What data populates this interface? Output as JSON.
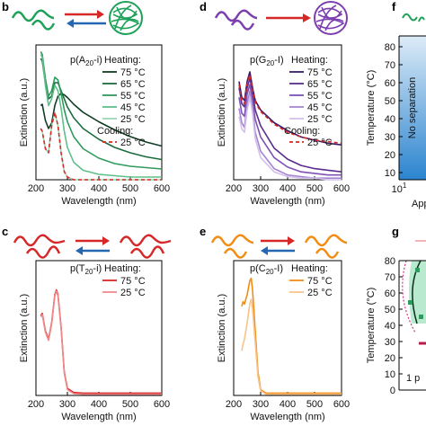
{
  "chart_data": [
    {
      "panel": "b",
      "type": "line",
      "title": "p(A20-i)",
      "title_main": "p(A",
      "title_sub": "20",
      "title_end": "-i)",
      "xlabel": "Wavelength (nm)",
      "ylabel": "Extinction (a.u.)",
      "xlim": [
        200,
        600
      ],
      "xticks": [
        "200",
        "300",
        "400",
        "500",
        "600"
      ],
      "legend_heating": "Heating:",
      "legend_cooling": "Cooling:",
      "series": [
        {
          "name": "75 °C",
          "group": "heating",
          "color": "#0f3d23",
          "dash": false,
          "x": [
            215,
            220,
            230,
            240,
            250,
            260,
            270,
            280,
            290,
            300,
            320,
            350,
            400,
            450,
            500,
            550,
            600
          ],
          "y": [
            0.55,
            0.56,
            0.44,
            0.38,
            0.42,
            0.55,
            0.62,
            0.64,
            0.63,
            0.61,
            0.56,
            0.5,
            0.43,
            0.37,
            0.32,
            0.28,
            0.25
          ]
        },
        {
          "name": "65 °C",
          "group": "heating",
          "color": "#1b6b3e",
          "dash": false,
          "x": [
            215,
            220,
            230,
            240,
            250,
            260,
            270,
            280,
            290,
            300,
            320,
            350,
            400,
            450,
            500,
            550,
            600
          ],
          "y": [
            0.9,
            0.88,
            0.72,
            0.6,
            0.62,
            0.72,
            0.72,
            0.66,
            0.6,
            0.54,
            0.46,
            0.38,
            0.3,
            0.24,
            0.2,
            0.17,
            0.15
          ]
        },
        {
          "name": "55 °C",
          "group": "heating",
          "color": "#2f9a5c",
          "dash": false,
          "x": [
            215,
            220,
            230,
            240,
            250,
            260,
            270,
            280,
            290,
            300,
            320,
            350,
            400,
            450,
            500,
            550,
            600
          ],
          "y": [
            0.95,
            0.93,
            0.75,
            0.62,
            0.66,
            0.76,
            0.74,
            0.64,
            0.52,
            0.43,
            0.32,
            0.23,
            0.16,
            0.12,
            0.1,
            0.09,
            0.08
          ]
        },
        {
          "name": "45 °C",
          "group": "heating",
          "color": "#5fbf8a",
          "dash": false,
          "x": [
            215,
            220,
            230,
            240,
            250,
            260,
            270,
            280,
            290,
            300,
            320,
            350,
            400,
            450,
            500,
            550,
            600
          ],
          "y": [
            0.93,
            0.91,
            0.7,
            0.55,
            0.6,
            0.7,
            0.66,
            0.53,
            0.36,
            0.24,
            0.13,
            0.07,
            0.04,
            0.03,
            0.02,
            0.02,
            0.02
          ]
        },
        {
          "name": "25 °C",
          "group": "heating",
          "color": "#9ed9b6",
          "dash": false,
          "x": [
            215,
            220,
            230,
            240,
            250,
            260,
            270,
            280,
            290,
            300,
            320,
            350,
            400,
            450,
            500,
            550,
            600
          ],
          "y": [
            0.38,
            0.36,
            0.23,
            0.2,
            0.4,
            0.5,
            0.4,
            0.2,
            0.06,
            0.02,
            0.0,
            0.0,
            0.0,
            0.0,
            0.0,
            0.0,
            0.0
          ]
        },
        {
          "name": "25 °C",
          "group": "cooling",
          "color": "#d62828",
          "dash": true,
          "x": [
            215,
            220,
            230,
            240,
            250,
            260,
            270,
            280,
            290,
            300,
            320,
            350,
            400,
            450,
            500,
            550,
            600
          ],
          "y": [
            0.38,
            0.36,
            0.23,
            0.2,
            0.4,
            0.5,
            0.4,
            0.2,
            0.06,
            0.02,
            0.0,
            0.0,
            0.0,
            0.0,
            0.0,
            0.0,
            0.0
          ]
        }
      ]
    },
    {
      "panel": "d",
      "type": "line",
      "title": "p(G20-I)",
      "title_main": "p(G",
      "title_sub": "20",
      "title_end": "-I)",
      "xlabel": "Wavelength (nm)",
      "ylabel": "Extinction (a.u.)",
      "xlim": [
        200,
        600
      ],
      "xticks": [
        "200",
        "300",
        "400",
        "500",
        "600"
      ],
      "legend_heating": "Heating:",
      "legend_cooling": "Cooling:",
      "series": [
        {
          "name": "75 °C",
          "group": "heating",
          "color": "#3a1b63",
          "dash": false,
          "x": [
            220,
            230,
            240,
            250,
            260,
            270,
            280,
            300,
            350,
            400,
            450,
            500,
            550,
            600
          ],
          "y": [
            0.62,
            0.52,
            0.5,
            0.62,
            0.68,
            0.58,
            0.5,
            0.44,
            0.36,
            0.31,
            0.27,
            0.25,
            0.23,
            0.22
          ]
        },
        {
          "name": "65 °C",
          "group": "heating",
          "color": "#5b2d8e",
          "dash": false,
          "x": [
            220,
            230,
            240,
            250,
            260,
            270,
            280,
            300,
            350,
            400,
            450,
            500,
            550,
            600
          ],
          "y": [
            0.58,
            0.48,
            0.46,
            0.58,
            0.64,
            0.55,
            0.44,
            0.34,
            0.2,
            0.13,
            0.09,
            0.07,
            0.06,
            0.05
          ]
        },
        {
          "name": "55 °C",
          "group": "heating",
          "color": "#7e52b5",
          "dash": false,
          "x": [
            220,
            230,
            240,
            250,
            260,
            270,
            280,
            300,
            350,
            400,
            450,
            500,
            550,
            600
          ],
          "y": [
            0.52,
            0.42,
            0.4,
            0.54,
            0.6,
            0.5,
            0.38,
            0.27,
            0.14,
            0.08,
            0.05,
            0.04,
            0.03,
            0.03
          ]
        },
        {
          "name": "45 °C",
          "group": "heating",
          "color": "#a585d2",
          "dash": false,
          "x": [
            220,
            230,
            240,
            250,
            260,
            270,
            280,
            300,
            350,
            400,
            450,
            500,
            550,
            600
          ],
          "y": [
            0.45,
            0.36,
            0.33,
            0.48,
            0.56,
            0.46,
            0.3,
            0.18,
            0.07,
            0.03,
            0.02,
            0.01,
            0.01,
            0.01
          ]
        },
        {
          "name": "25 °C",
          "group": "heating",
          "color": "#d3c0ea",
          "dash": false,
          "x": [
            220,
            230,
            240,
            250,
            260,
            270,
            280,
            300,
            350,
            400,
            450,
            500,
            550,
            600
          ],
          "y": [
            0.4,
            0.32,
            0.3,
            0.44,
            0.52,
            0.42,
            0.26,
            0.14,
            0.05,
            0.02,
            0.01,
            0.01,
            0.0,
            0.0
          ]
        },
        {
          "name": "25 °C",
          "group": "cooling",
          "color": "#d62828",
          "dash": true,
          "x": [
            220,
            230,
            240,
            250,
            260,
            270,
            280,
            300,
            350,
            400,
            450,
            500,
            550,
            600
          ],
          "y": [
            0.6,
            0.5,
            0.48,
            0.6,
            0.66,
            0.57,
            0.49,
            0.43,
            0.35,
            0.3,
            0.27,
            0.25,
            0.24,
            0.23
          ]
        }
      ]
    },
    {
      "panel": "c",
      "type": "line",
      "title": "p(T20-i)",
      "title_main": "p(T",
      "title_sub": "20",
      "title_end": "-i)",
      "xlabel": "Wavelength (nm)",
      "ylabel": "Extinction (a.u.)",
      "xlim": [
        200,
        600
      ],
      "xticks": [
        "200",
        "300",
        "400",
        "500",
        "600"
      ],
      "legend_heating": "Heating:",
      "series": [
        {
          "name": "75 °C",
          "group": "heating",
          "color": "#d62828",
          "dash": false,
          "x": [
            215,
            220,
            230,
            240,
            250,
            260,
            265,
            270,
            280,
            290,
            300,
            320,
            350,
            400,
            500,
            600
          ],
          "y": [
            0.68,
            0.7,
            0.55,
            0.48,
            0.62,
            0.86,
            0.9,
            0.86,
            0.58,
            0.2,
            0.06,
            0.025,
            0.02,
            0.02,
            0.02,
            0.02
          ]
        },
        {
          "name": "25 °C",
          "group": "heating",
          "color": "#f08a8a",
          "dash": false,
          "x": [
            215,
            220,
            230,
            240,
            250,
            260,
            265,
            270,
            280,
            290,
            300,
            320,
            350,
            400,
            500,
            600
          ],
          "y": [
            0.67,
            0.69,
            0.54,
            0.47,
            0.61,
            0.85,
            0.89,
            0.85,
            0.57,
            0.19,
            0.05,
            0.015,
            0.01,
            0.01,
            0.01,
            0.01
          ]
        }
      ]
    },
    {
      "panel": "e",
      "type": "line",
      "title": "p(C20-I)",
      "title_main": "p(C",
      "title_sub": "20",
      "title_end": "-I)",
      "xlabel": "Wavelength (nm)",
      "ylabel": "Extinction (a.u.)",
      "xlim": [
        200,
        600
      ],
      "xticks": [
        "200",
        "300",
        "400",
        "500",
        "600"
      ],
      "legend_heating": "Heating:",
      "series": [
        {
          "name": "75 °C",
          "group": "heating",
          "color": "#f28c12",
          "dash": false,
          "x": [
            230,
            235,
            240,
            250,
            260,
            265,
            270,
            280,
            290,
            300,
            320,
            350,
            400,
            500,
            600
          ],
          "y": [
            0.76,
            0.8,
            0.78,
            0.86,
            0.98,
            1.0,
            0.9,
            0.55,
            0.2,
            0.05,
            0.02,
            0.02,
            0.02,
            0.02,
            0.02
          ]
        },
        {
          "name": "25 °C",
          "group": "heating",
          "color": "#f9c38a",
          "dash": false,
          "x": [
            230,
            235,
            240,
            250,
            260,
            265,
            270,
            280,
            290,
            300,
            320,
            350,
            400,
            500,
            600
          ],
          "y": [
            0.38,
            0.44,
            0.48,
            0.62,
            0.78,
            0.82,
            0.74,
            0.45,
            0.16,
            0.04,
            0.01,
            0.01,
            0.01,
            0.01,
            0.01
          ]
        }
      ]
    },
    {
      "panel": "f",
      "type": "heatmap",
      "ylabel": "Temperature (°C)",
      "yticks": [
        "10",
        "20",
        "30",
        "40",
        "50",
        "60",
        "70",
        "80"
      ],
      "x_ticklabel": "10",
      "x_ticklabel_sup": "1",
      "xlabel_partial": "App",
      "region_label": "No separation",
      "colors": {
        "region_top": "#dcebf7",
        "region_bottom": "#2b84cf"
      }
    },
    {
      "panel": "g",
      "type": "scatter",
      "ylabel": "Temperature (°C)",
      "yticks": [
        "0",
        "10",
        "20",
        "30",
        "40",
        "50",
        "60",
        "70",
        "80"
      ],
      "partial_label": "1 p",
      "colors": {
        "boundary": "#d6338a",
        "region": "#a8e4c3",
        "curve": "#0b2f1e",
        "point": "#2e9a5e",
        "marker": "#b81d4e"
      }
    }
  ]
}
